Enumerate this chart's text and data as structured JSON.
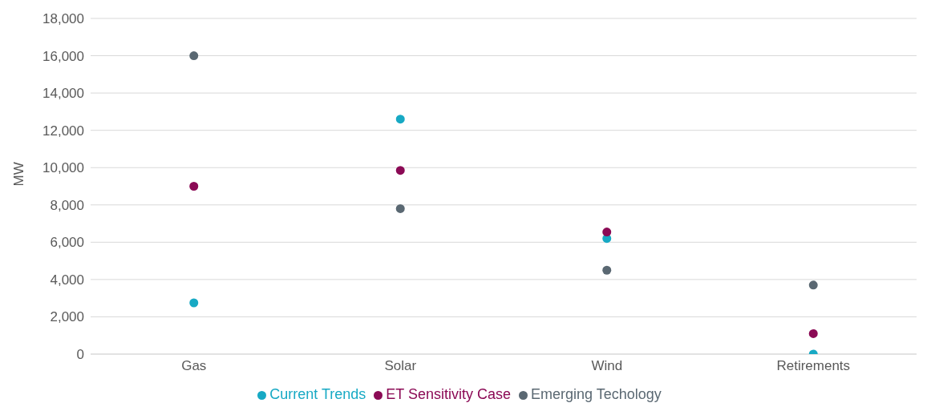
{
  "chart_data": {
    "type": "scatter",
    "ylabel": "MW",
    "categories": [
      "Gas",
      "Solar",
      "Wind",
      "Retirements"
    ],
    "series": [
      {
        "name": "Current Trends",
        "color": "#17a9c4",
        "values": [
          2750,
          12600,
          6200,
          0
        ]
      },
      {
        "name": "Emerging Techology",
        "color": "#5a6872",
        "values": [
          16000,
          7800,
          4500,
          3700
        ]
      },
      {
        "name": "ET Sensitivity Case",
        "color": "#8b0a55",
        "values": [
          9000,
          9850,
          6550,
          1100
        ]
      }
    ],
    "ylim": [
      0,
      18000
    ],
    "yticks": [
      0,
      {
        "value": 2000,
        "label": "2,000"
      },
      {
        "value": 4000,
        "label": "4,000"
      },
      {
        "value": 6000,
        "label": "6,000"
      },
      {
        "value": 8000,
        "label": "8,000"
      },
      {
        "value": 10000,
        "label": "10,000"
      },
      {
        "value": 12000,
        "label": "12,000"
      },
      {
        "value": 14000,
        "label": "14,000"
      },
      {
        "value": 16000,
        "label": "16,000"
      },
      {
        "value": 18000,
        "label": "18,000"
      }
    ],
    "grid": "y",
    "legend": "bottom",
    "marker": "circle"
  }
}
